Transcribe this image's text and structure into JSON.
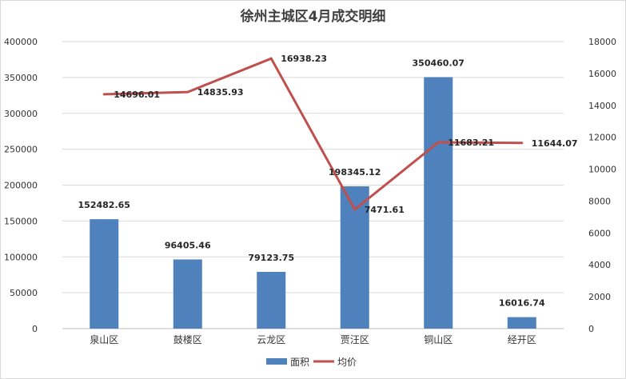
{
  "chart_data": {
    "type": "bar",
    "title": "徐州主城区4月成交明细",
    "categories": [
      "泉山区",
      "鼓楼区",
      "云龙区",
      "贾汪区",
      "铜山区",
      "经开区"
    ],
    "series": [
      {
        "name": "面积",
        "type": "bar",
        "axis": "left",
        "color": "#4f81bd",
        "values": [
          152482.65,
          96405.46,
          79123.75,
          198345.12,
          350460.07,
          16016.74
        ],
        "labels": [
          "152482.65",
          "96405.46",
          "79123.75",
          "198345.12",
          "350460.07",
          "16016.74"
        ]
      },
      {
        "name": "均价",
        "type": "line",
        "axis": "right",
        "color": "#c0504d",
        "values": [
          14696.01,
          14835.93,
          16938.23,
          7471.61,
          11683.21,
          11644.07
        ],
        "labels": [
          "14696.01",
          "14835.93",
          "16938.23",
          "7471.61",
          "11683.21",
          "11644.07"
        ]
      }
    ],
    "y_left": {
      "ylim": [
        0,
        400000
      ],
      "ticks": [
        "0",
        "50000",
        "100000",
        "150000",
        "200000",
        "250000",
        "300000",
        "350000",
        "400000"
      ]
    },
    "y_right": {
      "ylim": [
        0,
        18000
      ],
      "ticks": [
        "0",
        "2000",
        "4000",
        "6000",
        "8000",
        "10000",
        "12000",
        "14000",
        "16000",
        "18000"
      ]
    },
    "grid": true,
    "legend_position": "bottom"
  }
}
